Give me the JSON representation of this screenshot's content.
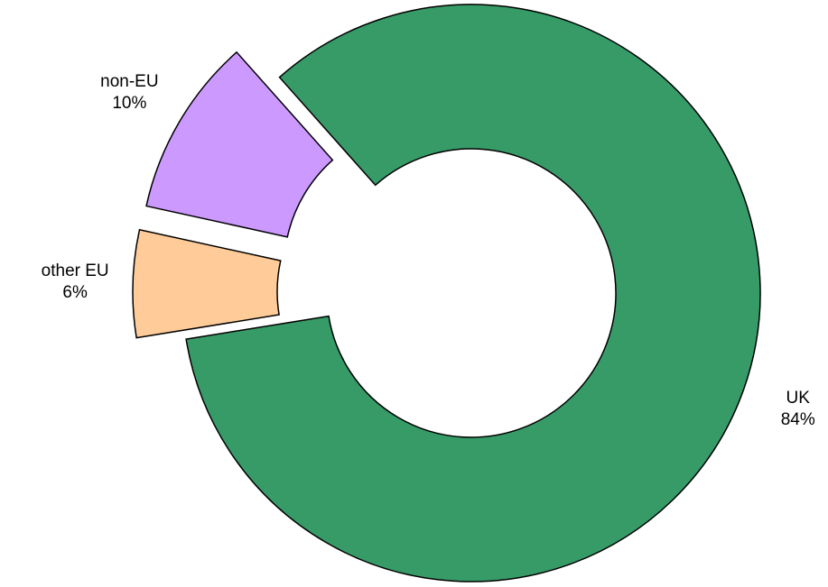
{
  "chart_data": {
    "type": "donut",
    "categories": [
      "UK",
      "other EU",
      "non-EU"
    ],
    "values": [
      84,
      6,
      10
    ],
    "value_labels": [
      "84%",
      "6%",
      "10%"
    ],
    "colors": [
      "#379b68",
      "#ffcc99",
      "#cc99ff"
    ]
  }
}
